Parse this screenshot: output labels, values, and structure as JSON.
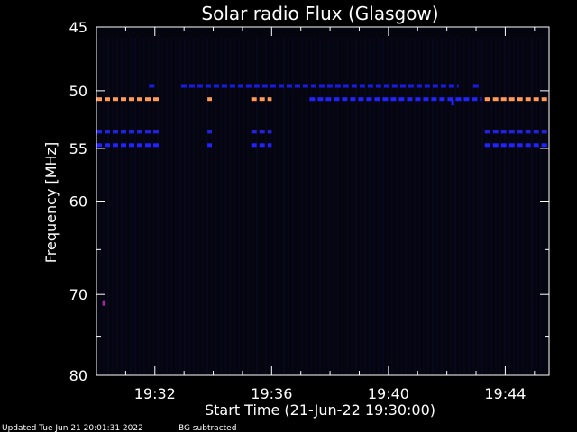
{
  "chart_data": {
    "type": "heatmap",
    "title": "Solar radio Flux (Glasgow)",
    "xlabel": "Start Time (21-Jun-22 19:30:00)",
    "ylabel": "Frequency [MHz]",
    "x_range_minutes": [
      0,
      15.5
    ],
    "x_ticks": [
      {
        "label": "19:32",
        "minute": 2
      },
      {
        "label": "19:36",
        "minute": 6
      },
      {
        "label": "19:40",
        "minute": 10
      },
      {
        "label": "19:44",
        "minute": 14
      }
    ],
    "y_range_mhz": [
      45,
      80
    ],
    "y_scale": "log",
    "y_major_ticks": [
      45,
      50,
      55,
      60,
      70,
      80
    ],
    "y_minor_ticks": [
      65,
      75
    ],
    "background_color": "#05050f",
    "bands": [
      {
        "freq": 49.6,
        "color": "#1a1ae6",
        "segments": [
          [
            1.8,
            2.0
          ],
          [
            2.9,
            12.4
          ],
          [
            12.9,
            13.1
          ]
        ]
      },
      {
        "freq": 50.7,
        "color": "#ff9955",
        "segments": [
          [
            0.0,
            2.2
          ],
          [
            3.8,
            3.95
          ],
          [
            5.3,
            6.0
          ],
          [
            13.3,
            15.5
          ]
        ]
      },
      {
        "freq": 50.7,
        "color": "#2222ff",
        "segments": [
          [
            7.3,
            13.2
          ]
        ]
      },
      {
        "freq": 53.5,
        "color": "#2222dd",
        "segments": [
          [
            0.0,
            2.2
          ],
          [
            3.8,
            3.95
          ],
          [
            5.3,
            6.0
          ],
          [
            13.3,
            15.5
          ]
        ]
      },
      {
        "freq": 54.7,
        "color": "#2222ff",
        "segments": [
          [
            0.0,
            2.2
          ],
          [
            3.8,
            3.95
          ],
          [
            5.3,
            6.0
          ],
          [
            13.3,
            15.5
          ]
        ]
      }
    ],
    "spots": [
      {
        "minute": 0.25,
        "freq": 71.0,
        "color": "#aa22aa"
      },
      {
        "minute": 12.2,
        "freq": 51.0,
        "color": "#2222ff"
      }
    ],
    "footer_left": "Updated Tue Jun 21 20:01:31 2022",
    "footer_right": "BG subtracted"
  }
}
